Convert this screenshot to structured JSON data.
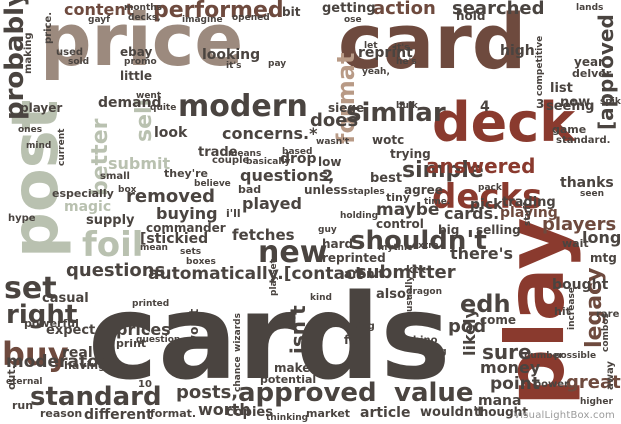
{
  "palette": {
    "dark": "#4a4440",
    "brown": "#6e4a3e",
    "rust": "#8a3a2e",
    "tan": "#b89a86",
    "taupe": "#9c8a7e",
    "sage": "#b9c1b0",
    "grey": "#8a8a86"
  },
  "words": [
    {
      "text": "price"
    },
    {
      "text": "card"
    },
    {
      "text": "cards"
    },
    {
      "text": "post"
    },
    {
      "text": "play"
    },
    {
      "text": "deck"
    },
    {
      "text": "decks"
    },
    {
      "text": "foil"
    },
    {
      "text": "modern"
    },
    {
      "text": "probably"
    },
    {
      "text": "content"
    },
    {
      "text": "performed"
    },
    {
      "text": "action"
    },
    {
      "text": "searched"
    },
    {
      "text": "getting"
    },
    {
      "text": "format"
    },
    {
      "text": "looking"
    },
    {
      "text": "similar"
    },
    {
      "text": "concerns.*"
    },
    {
      "text": "does"
    },
    {
      "text": "questions,"
    },
    {
      "text": "simple"
    },
    {
      "text": "answered"
    },
    {
      "text": "removed"
    },
    {
      "text": "buying"
    },
    {
      "text": "played"
    },
    {
      "text": "[stickied"
    },
    {
      "text": "fetches"
    },
    {
      "text": "new"
    },
    {
      "text": "shouldn't"
    },
    {
      "text": "questions"
    },
    {
      "text": "automatically.[contact"
    },
    {
      "text": "submitter"
    },
    {
      "text": "there's"
    },
    {
      "text": "players"
    },
    {
      "text": "playing"
    },
    {
      "text": "set"
    },
    {
      "text": "right"
    },
    {
      "text": "buy"
    },
    {
      "text": "edh"
    },
    {
      "text": "legacy"
    },
    {
      "text": "prices"
    },
    {
      "text": "isn't"
    },
    {
      "text": "standard"
    },
    {
      "text": "posts,"
    },
    {
      "text": "approved"
    },
    {
      "text": "value"
    },
    {
      "text": "sure"
    },
    {
      "text": "money"
    },
    {
      "text": "point"
    },
    {
      "text": "mana"
    },
    {
      "text": "great"
    },
    {
      "text": "moderators"
    },
    {
      "text": "pod"
    },
    {
      "text": "high"
    },
    {
      "text": "[approved"
    },
    {
      "text": "submit"
    },
    {
      "text": "better"
    },
    {
      "text": "sell"
    },
    {
      "text": "magic"
    },
    {
      "text": "reprint"
    },
    {
      "text": "drop"
    },
    {
      "text": "best"
    },
    {
      "text": "maybe"
    },
    {
      "text": "cards."
    },
    {
      "text": "long"
    },
    {
      "text": "list"
    },
    {
      "text": "now,"
    },
    {
      "text": "seeing"
    },
    {
      "text": "trading"
    },
    {
      "text": "thanks"
    },
    {
      "text": "worth"
    },
    {
      "text": "copies"
    },
    {
      "text": "article"
    },
    {
      "text": "wouldn't"
    },
    {
      "text": "thought"
    },
    {
      "text": "power"
    },
    {
      "text": "different"
    },
    {
      "text": "reason"
    },
    {
      "text": "format."
    },
    {
      "text": "market"
    },
    {
      "text": "thinking"
    },
    {
      "text": "real"
    },
    {
      "text": "casual"
    },
    {
      "text": "expect"
    },
    {
      "text": "look"
    },
    {
      "text": "demand"
    },
    {
      "text": "player"
    },
    {
      "text": "supply"
    },
    {
      "text": "commander"
    },
    {
      "text": "likely"
    },
    {
      "text": "selling"
    },
    {
      "text": "reprinted"
    },
    {
      "text": "aren't"
    },
    {
      "text": "hard"
    },
    {
      "text": "come"
    },
    {
      "text": "bought"
    },
    {
      "text": "mtg"
    },
    {
      "text": "agree"
    },
    {
      "text": "tiny"
    },
    {
      "text": "control"
    },
    {
      "text": "pick"
    },
    {
      "text": "trying"
    },
    {
      "text": "wotc"
    },
    {
      "text": "low"
    },
    {
      "text": "siege"
    },
    {
      "text": "trade"
    },
    {
      "text": "ebay"
    },
    {
      "text": "little"
    },
    {
      "text": "making"
    },
    {
      "text": "price."
    },
    {
      "text": "used"
    },
    {
      "text": "year"
    },
    {
      "text": "delver"
    },
    {
      "text": "gayf"
    },
    {
      "text": "months"
    },
    {
      "text": "decks,"
    },
    {
      "text": "imagine"
    },
    {
      "text": "opened"
    },
    {
      "text": "bit"
    },
    {
      "text": "hold"
    },
    {
      "text": "lands"
    },
    {
      "text": "ose"
    },
    {
      "text": "sold"
    },
    {
      "text": "promo"
    },
    {
      "text": "pay"
    },
    {
      "text": "yeah,"
    },
    {
      "text": "competitive"
    },
    {
      "text": "spike"
    },
    {
      "text": "game"
    },
    {
      "text": "standard."
    },
    {
      "text": "2"
    },
    {
      "text": "4"
    },
    {
      "text": "3"
    },
    {
      "text": "10"
    },
    {
      "text": "it's"
    },
    {
      "text": "i'll"
    },
    {
      "text": "bad"
    },
    {
      "text": "unless"
    },
    {
      "text": "staples"
    },
    {
      "text": "wizards"
    },
    {
      "text": "makes"
    },
    {
      "text": "potential"
    },
    {
      "text": "printed"
    },
    {
      "text": "run"
    },
    {
      "text": "eternal"
    },
    {
      "text": "out."
    },
    {
      "text": "using"
    },
    {
      "text": "far"
    },
    {
      "text": "rhino"
    },
    {
      "text": "doing"
    },
    {
      "text": "also,"
    },
    {
      "text": "kind"
    },
    {
      "text": "chance"
    },
    {
      "text": "won't"
    },
    {
      "text": "print"
    },
    {
      "text": "mean"
    },
    {
      "text": "hype"
    },
    {
      "text": "especially"
    },
    {
      "text": "ones"
    },
    {
      "text": "mind"
    },
    {
      "text": "current"
    },
    {
      "text": "having"
    },
    {
      "text": "usually"
    },
    {
      "text": "dragon"
    },
    {
      "text": "ktk"
    },
    {
      "text": "big"
    },
    {
      "text": "wait"
    },
    {
      "text": "hit"
    },
    {
      "text": "rare"
    },
    {
      "text": "away"
    },
    {
      "text": "higher"
    },
    {
      "text": "combos"
    },
    {
      "text": "increase"
    },
    {
      "text": "possible"
    },
    {
      "text": "number"
    },
    {
      "text": "extra"
    },
    {
      "text": "mythic"
    },
    {
      "text": "holding"
    },
    {
      "text": "guy"
    },
    {
      "text": "basically"
    },
    {
      "text": "based"
    },
    {
      "text": "wasn't"
    },
    {
      "text": "means"
    },
    {
      "text": "couple"
    },
    {
      "text": "believe"
    },
    {
      "text": "they're"
    },
    {
      "text": "box"
    },
    {
      "text": "small"
    },
    {
      "text": "went"
    },
    {
      "text": "quite"
    },
    {
      "text": "sets"
    },
    {
      "text": "boxes"
    },
    {
      "text": "playset"
    },
    {
      "text": "question"
    },
    {
      "text": "powerful"
    },
    {
      "text": "time."
    },
    {
      "text": "seen"
    },
    {
      "text": "pack"
    },
    {
      "text": "stuff"
    },
    {
      "text": "bulk"
    },
    {
      "text": "let"
    },
    {
      "text": "it's"
    },
    {
      "text": "he's"
    }
  ],
  "watermark": "VisualLightBox.com"
}
